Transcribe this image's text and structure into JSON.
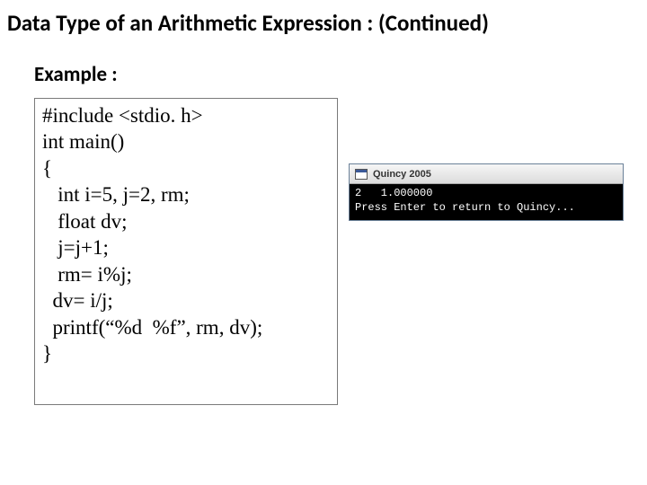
{
  "title": {
    "text": "Data Type of an Arithmetic Expression : (Continued)",
    "fontsize": 25
  },
  "example": {
    "label": "Example :",
    "fontsize": 23
  },
  "code": {
    "fontsize": 23,
    "lines": [
      "#include <stdio. h>",
      "int main()",
      "{",
      "   int i=5, j=2, rm;",
      "   float dv;",
      "   j=j+1;",
      "   rm= i%j;",
      "  dv= i/j;",
      "  printf(“%d  %f”, rm, dv);",
      "}"
    ]
  },
  "console": {
    "title": "Quincy 2005",
    "title_fontsize": 11,
    "body_fontsize": 12,
    "lines": [
      "2   1.000000",
      "Press Enter to return to Quincy..."
    ],
    "background": "#000000",
    "text_color": "#ffffff"
  }
}
